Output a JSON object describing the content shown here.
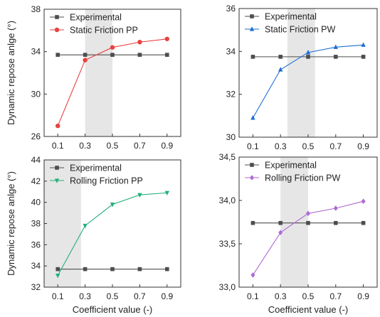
{
  "colors": {
    "experimental": "#4d4d4d",
    "static_pp": "#e8423f",
    "static_pw": "#1f6fd1",
    "rolling_pp": "#23b07a",
    "rolling_pw": "#b06ad6",
    "band": "#e6e6e6"
  },
  "chart_data": [
    {
      "type": "line",
      "panel": "top-left",
      "x": [
        0.1,
        0.3,
        0.5,
        0.7,
        0.9
      ],
      "x_tick_labels": [
        "0.1",
        "0.3",
        "0.5",
        "0.7",
        "0.9"
      ],
      "xlim": [
        0.0,
        1.0
      ],
      "ylim": [
        26,
        38
      ],
      "y_ticks": [
        26,
        30,
        34,
        38
      ],
      "y_tick_labels": [
        "26",
        "30",
        "34",
        "38"
      ],
      "ylabel": "Dynamic repose anlge (°)",
      "xlabel": "",
      "shaded_range": [
        0.3,
        0.5
      ],
      "legend_position": "top-left",
      "series": [
        {
          "name": "Experimental",
          "marker": "square",
          "values": [
            33.7,
            33.7,
            33.7,
            33.7,
            33.7
          ]
        },
        {
          "name": "Static Friction PP",
          "marker": "circle",
          "values": [
            27.0,
            33.2,
            34.4,
            34.9,
            35.2
          ]
        }
      ]
    },
    {
      "type": "line",
      "panel": "top-right",
      "x": [
        0.1,
        0.3,
        0.5,
        0.7,
        0.9
      ],
      "x_tick_labels": [
        "0.1",
        "0.3",
        "0.5",
        "0.7",
        "0.9"
      ],
      "xlim": [
        0.0,
        1.0
      ],
      "ylim": [
        30,
        36
      ],
      "y_ticks": [
        30,
        32,
        34,
        36
      ],
      "y_tick_labels": [
        "30",
        "32",
        "34",
        "36"
      ],
      "ylabel": "",
      "xlabel": "",
      "shaded_range": [
        0.35,
        0.55
      ],
      "legend_position": "top-left",
      "series": [
        {
          "name": "Experimental",
          "marker": "square",
          "values": [
            33.75,
            33.75,
            33.75,
            33.75,
            33.75
          ]
        },
        {
          "name": "Static Friction PW",
          "marker": "triangle-up",
          "values": [
            30.9,
            33.15,
            33.95,
            34.2,
            34.3
          ]
        }
      ]
    },
    {
      "type": "line",
      "panel": "bottom-left",
      "x": [
        0.1,
        0.3,
        0.5,
        0.7,
        0.9
      ],
      "x_tick_labels": [
        "0.1",
        "0.3",
        "0.5",
        "0.7",
        "0.9"
      ],
      "xlim": [
        0.0,
        1.0
      ],
      "ylim": [
        32,
        44
      ],
      "y_ticks": [
        32,
        34,
        36,
        38,
        40,
        42,
        44
      ],
      "y_tick_labels": [
        "32",
        "34",
        "36",
        "38",
        "40",
        "42",
        "44"
      ],
      "ylabel": "Dynamic repose anlge (°)",
      "xlabel": "Coefficient value (-)",
      "shaded_range": [
        0.0,
        0.27
      ],
      "legend_position": "top-left",
      "series": [
        {
          "name": "Experimental",
          "marker": "square",
          "values": [
            33.7,
            33.7,
            33.7,
            33.7,
            33.7
          ]
        },
        {
          "name": "Rolling Friction PP",
          "marker": "triangle-down",
          "values": [
            33.1,
            37.8,
            39.8,
            40.7,
            40.9
          ]
        }
      ]
    },
    {
      "type": "line",
      "panel": "bottom-right",
      "x": [
        0.1,
        0.3,
        0.5,
        0.7,
        0.9
      ],
      "x_tick_labels": [
        "0.1",
        "0.3",
        "0.5",
        "0.7",
        "0.9"
      ],
      "xlim": [
        0.0,
        1.0
      ],
      "ylim": [
        33.0,
        34.5
      ],
      "y_ticks": [
        33.0,
        33.5,
        34.0,
        34.5
      ],
      "y_tick_labels": [
        "33,0",
        "33,5",
        "34,0",
        "34,5"
      ],
      "ylabel": "",
      "xlabel": "Coefficient value (-)",
      "shaded_range": [
        0.3,
        0.5
      ],
      "legend_position": "top-left",
      "series": [
        {
          "name": "Experimental",
          "marker": "square",
          "values": [
            33.74,
            33.74,
            33.74,
            33.74,
            33.74
          ]
        },
        {
          "name": "Rolling Friction PW",
          "marker": "diamond",
          "values": [
            33.14,
            33.63,
            33.85,
            33.91,
            33.99
          ]
        }
      ]
    }
  ]
}
